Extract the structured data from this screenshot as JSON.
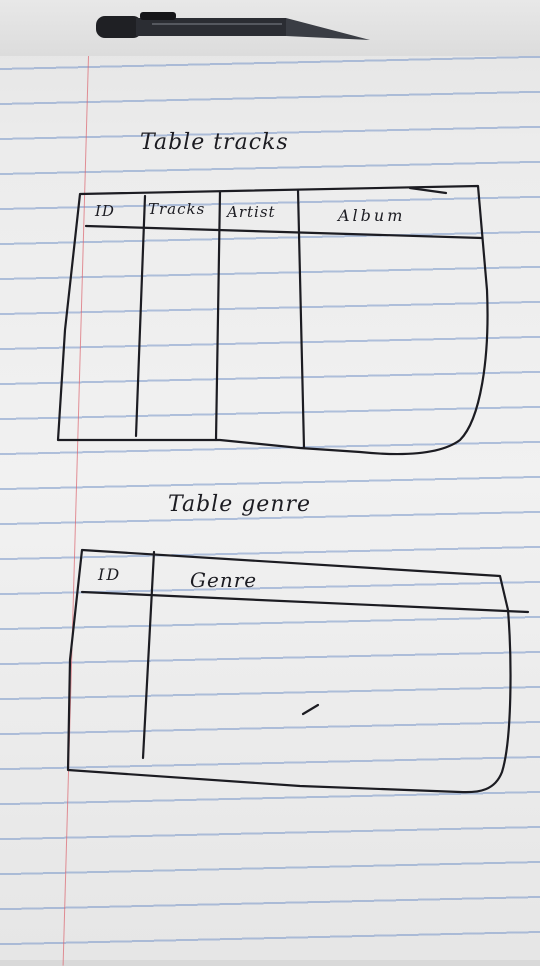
{
  "tables": [
    {
      "title": "Table tracks",
      "columns": [
        "ID",
        "Tracks",
        "Artist",
        "Album"
      ]
    },
    {
      "title": "Table genre",
      "columns": [
        "ID",
        "Genre"
      ]
    }
  ],
  "colors": {
    "paper": "#f1f1f1",
    "rule_line": "#7896c8",
    "margin_line": "#dc646e",
    "ink": "#1c1c22"
  }
}
